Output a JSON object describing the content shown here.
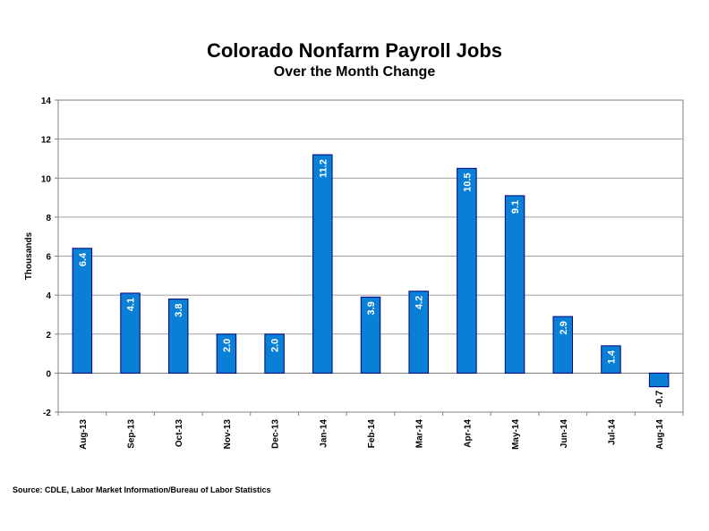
{
  "chart_data": {
    "type": "bar",
    "title": "Colorado Nonfarm Payroll Jobs",
    "subtitle": "Over the Month Change",
    "ylabel": "Thousands",
    "xlabel": "",
    "ylim": [
      -2,
      14
    ],
    "yticks": [
      -2,
      0,
      2,
      4,
      6,
      8,
      10,
      12,
      14
    ],
    "grid": true,
    "legend": "none",
    "bar_color": "#0a7fd6",
    "bar_edge_color": "#000080",
    "categories": [
      "Aug-13",
      "Sep-13",
      "Oct-13",
      "Nov-13",
      "Dec-13",
      "Jan-14",
      "Feb-14",
      "Mar-14",
      "Apr-14",
      "May-14",
      "Jun-14",
      "Jul-14",
      "Aug-14"
    ],
    "values": [
      6.4,
      4.1,
      3.8,
      2.0,
      2.0,
      11.2,
      3.9,
      4.2,
      10.5,
      9.1,
      2.9,
      1.4,
      -0.7
    ],
    "data_labels": [
      "6.4",
      "4.1",
      "3.8",
      "2.0",
      "2.0",
      "11.2",
      "3.9",
      "4.2",
      "10.5",
      "9.1",
      "2.9",
      "1.4",
      "-0.7"
    ],
    "source": "Source: CDLE, Labor Market Information/Bureau of Labor Statistics"
  }
}
